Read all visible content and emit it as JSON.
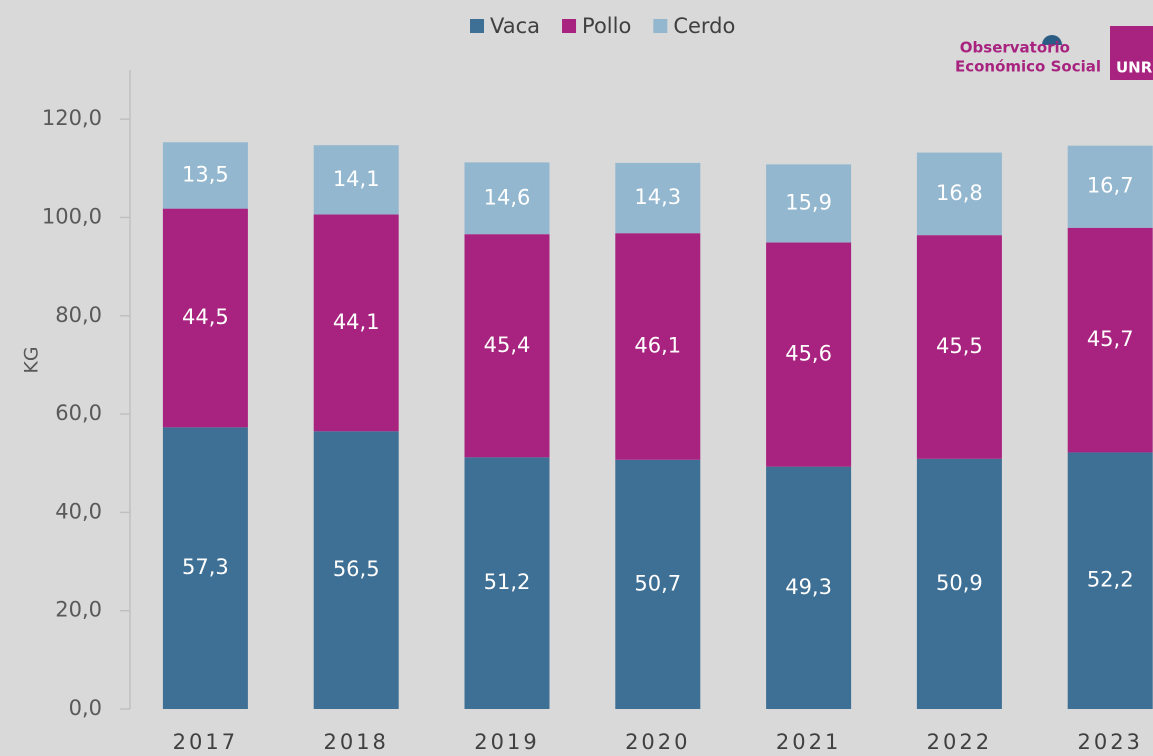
{
  "chart_data": {
    "type": "stacked_bar",
    "categories": [
      "2017",
      "2018",
      "2019",
      "2020",
      "2021",
      "2022",
      "2023"
    ],
    "series": [
      {
        "name": "Vaca",
        "color": "#3e6f94",
        "values": [
          57.3,
          56.5,
          51.2,
          50.7,
          49.3,
          50.9,
          52.2
        ],
        "value_labels": [
          "57,3",
          "56,5",
          "51,2",
          "50,7",
          "49,3",
          "50,9",
          "52,2"
        ]
      },
      {
        "name": "Pollo",
        "color": "#a8237f",
        "values": [
          44.5,
          44.1,
          45.4,
          46.1,
          45.6,
          45.5,
          45.7
        ],
        "value_labels": [
          "44,5",
          "44,1",
          "45,4",
          "46,1",
          "45,6",
          "45,5",
          "45,7"
        ]
      },
      {
        "name": "Cerdo",
        "color": "#93b7cf",
        "values": [
          13.5,
          14.1,
          14.6,
          14.3,
          15.9,
          16.8,
          16.7
        ],
        "value_labels": [
          "13,5",
          "14,1",
          "14,6",
          "14,3",
          "15,9",
          "16,8",
          "16,7"
        ]
      }
    ],
    "ylabel": "KG",
    "ylim": [
      0,
      130
    ],
    "yticks": [
      {
        "value": 0,
        "label": "0,0"
      },
      {
        "value": 20,
        "label": "20,0"
      },
      {
        "value": 40,
        "label": "40,0"
      },
      {
        "value": 60,
        "label": "60,0"
      },
      {
        "value": 80,
        "label": "80,0"
      },
      {
        "value": 100,
        "label": "100,0"
      },
      {
        "value": 120,
        "label": "120,0"
      }
    ],
    "legend": "top"
  },
  "logo": {
    "line1": "Observatorio",
    "line2": "Económico Social",
    "badge": "UNR"
  }
}
